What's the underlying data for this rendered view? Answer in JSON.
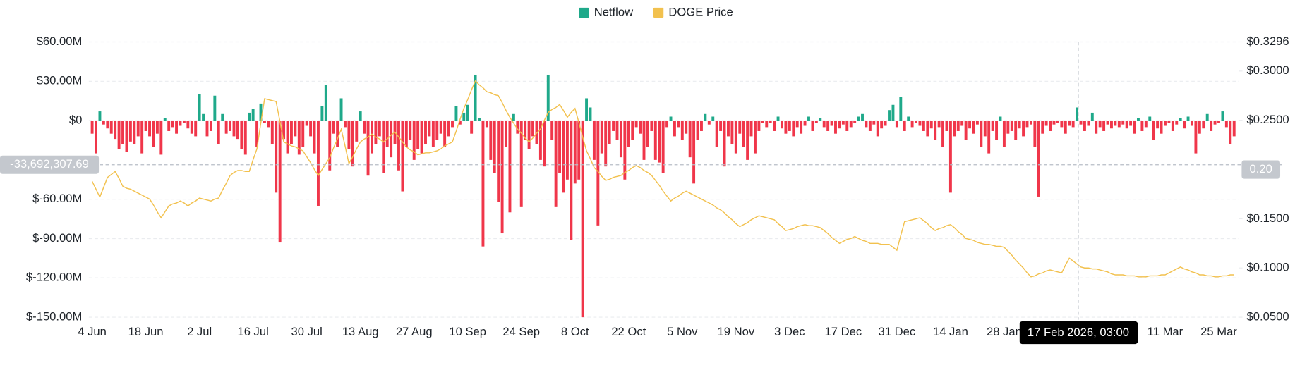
{
  "chart_data": {
    "type": "bar",
    "categories": [
      "4 Jun",
      null,
      null,
      null,
      null,
      null,
      null,
      null,
      null,
      null,
      null,
      null,
      null,
      null,
      "18 Jun",
      null,
      null,
      null,
      null,
      null,
      null,
      null,
      null,
      null,
      null,
      null,
      null,
      null,
      "2 Jul",
      null,
      null,
      null,
      null,
      null,
      null,
      null,
      null,
      null,
      null,
      null,
      null,
      null,
      "16 Jul",
      null,
      null,
      null,
      null,
      null,
      null,
      null,
      null,
      null,
      null,
      null,
      null,
      null,
      "30 Jul",
      null,
      null,
      null,
      null,
      null,
      null,
      null,
      null,
      null,
      null,
      null,
      null,
      null,
      "13 Aug",
      null,
      null,
      null,
      null,
      null,
      null,
      null,
      null,
      null,
      null,
      null,
      null,
      null,
      "27 Aug",
      null,
      null,
      null,
      null,
      null,
      null,
      null,
      null,
      null,
      null,
      null,
      null,
      null,
      "10 Sep",
      null,
      null,
      null,
      null,
      null,
      null,
      null,
      null,
      null,
      null,
      null,
      null,
      null,
      "24 Sep",
      null,
      null,
      null,
      null,
      null,
      null,
      null,
      null,
      null,
      null,
      null,
      null,
      null,
      "8 Oct",
      null,
      null,
      null,
      null,
      null,
      null,
      null,
      null,
      null,
      null,
      null,
      null,
      null,
      "22 Oct",
      null,
      null,
      null,
      null,
      null,
      null,
      null,
      null,
      null,
      null,
      null,
      null,
      null,
      "5 Nov",
      null,
      null,
      null,
      null,
      null,
      null,
      null,
      null,
      null,
      null,
      null,
      null,
      null,
      "19 Nov",
      null,
      null,
      null,
      null,
      null,
      null,
      null,
      null,
      null,
      null,
      null,
      null,
      null,
      "3 Dec",
      null,
      null,
      null,
      null,
      null,
      null,
      null,
      null,
      null,
      null,
      null,
      null,
      null,
      "17 Dec",
      null,
      null,
      null,
      null,
      null,
      null,
      null,
      null,
      null,
      null,
      null,
      null,
      null,
      "31 Dec",
      null,
      null,
      null,
      null,
      null,
      null,
      null,
      null,
      null,
      null,
      null,
      null,
      null,
      "14 Jan",
      null,
      null,
      null,
      null,
      null,
      null,
      null,
      null,
      null,
      null,
      null,
      null,
      null,
      "28 Jan",
      null,
      null,
      null,
      null,
      null,
      null,
      null,
      null,
      null,
      null,
      null,
      null,
      null,
      null,
      null,
      null,
      null,
      null,
      null,
      null,
      null,
      null,
      null,
      null,
      null,
      null,
      null,
      null,
      null,
      null,
      null,
      null,
      null,
      null,
      null,
      null,
      null,
      null,
      null,
      null,
      null,
      "11 Mar",
      null,
      null,
      null,
      null,
      null,
      null,
      null,
      null,
      null,
      null,
      null,
      null,
      null,
      "25 Mar",
      null,
      null,
      null,
      null
    ],
    "series": [
      {
        "name": "Netflow",
        "type": "bar",
        "color": "#1fa98a",
        "negative_color": "#f0364a",
        "values": [
          -10000000.0,
          -25000000.0,
          7000000.0,
          -3000000.0,
          -6000000.0,
          -10000000.0,
          -14000000.0,
          -22000000.0,
          -18000000.0,
          -24000000.0,
          -16000000.0,
          -18000000.0,
          -12000000.0,
          -25000000.0,
          -8000000.0,
          -12000000.0,
          -20000000.0,
          -10000000.0,
          -26000000.0,
          2000000.0,
          -8000000.0,
          -5000000.0,
          -10000000.0,
          -4000000.0,
          -2000000.0,
          -6000000.0,
          -10000000.0,
          -12000000.0,
          20000000.0,
          5000000.0,
          -12000000.0,
          -8000000.0,
          19000000.0,
          -18000000.0,
          5000000.0,
          -10000000.0,
          -8000000.0,
          -12000000.0,
          -14000000.0,
          -22000000.0,
          -26000000.0,
          6000000.0,
          9000000.0,
          -20000000.0,
          13000000.0,
          -2000000.0,
          -5000000.0,
          -18000000.0,
          -55000000.0,
          -93000000.0,
          -14000000.0,
          -25000000.0,
          -18000000.0,
          -12000000.0,
          -26000000.0,
          -20000000.0,
          -4000000.0,
          -12000000.0,
          -25000000.0,
          -65000000.0,
          11000000.0,
          27000000.0,
          -38000000.0,
          -10000000.0,
          -20000000.0,
          17000000.0,
          -5000000.0,
          -22000000.0,
          -35000000.0,
          -16000000.0,
          7000000.0,
          -10000000.0,
          -42000000.0,
          -25000000.0,
          -18000000.0,
          -12000000.0,
          -40000000.0,
          -20000000.0,
          -28000000.0,
          -18000000.0,
          -38000000.0,
          -54000000.0,
          -20000000.0,
          -15000000.0,
          -30000000.0,
          -22000000.0,
          -25000000.0,
          -18000000.0,
          -12000000.0,
          -20000000.0,
          -15000000.0,
          -10000000.0,
          -20000000.0,
          -12000000.0,
          -5000000.0,
          11000000.0,
          -3000000.0,
          6000000.0,
          12000000.0,
          -10000000.0,
          35000000.0,
          2000000.0,
          -96000000.0,
          -5000000.0,
          -30000000.0,
          -40000000.0,
          -62000000.0,
          -86000000.0,
          -20000000.0,
          -70000000.0,
          5000000.0,
          -10000000.0,
          -66000000.0,
          -15000000.0,
          -22000000.0,
          -12000000.0,
          -18000000.0,
          -30000000.0,
          -35000000.0,
          35000000.0,
          -15000000.0,
          -66000000.0,
          -40000000.0,
          -55000000.0,
          -45000000.0,
          -91000000.0,
          -48000000.0,
          -45000000.0,
          -150000000.0,
          17000000.0,
          10000000.0,
          -30000000.0,
          -80000000.0,
          -25000000.0,
          -35000000.0,
          -18000000.0,
          -8000000.0,
          -15000000.0,
          -28000000.0,
          -45000000.0,
          -20000000.0,
          -15000000.0,
          -5000000.0,
          -10000000.0,
          -30000000.0,
          -20000000.0,
          -8000000.0,
          -30000000.0,
          -32000000.0,
          -40000000.0,
          -5000000.0,
          3000000.0,
          -12000000.0,
          -5000000.0,
          -15000000.0,
          -10000000.0,
          -28000000.0,
          -48000000.0,
          -15000000.0,
          -8000000.0,
          5000000.0,
          -3000000.0,
          3000000.0,
          -20000000.0,
          -8000000.0,
          -35000000.0,
          -12000000.0,
          -18000000.0,
          -25000000.0,
          -10000000.0,
          -20000000.0,
          -30000000.0,
          -12000000.0,
          -25000000.0,
          -8000000.0,
          -2000000.0,
          -5000000.0,
          -2000000.0,
          -8000000.0,
          3000000.0,
          -6000000.0,
          -10000000.0,
          -8000000.0,
          -12000000.0,
          -5000000.0,
          -10000000.0,
          -4000000.0,
          3000000.0,
          -8000000.0,
          -2000000.0,
          2000000.0,
          -5000000.0,
          -8000000.0,
          -4000000.0,
          -10000000.0,
          -6000000.0,
          -3000000.0,
          -8000000.0,
          -5000000.0,
          -2000000.0,
          3000000.0,
          5000000.0,
          -5000000.0,
          -8000000.0,
          -3000000.0,
          -12000000.0,
          -6000000.0,
          -4000000.0,
          8000000.0,
          12000000.0,
          -5000000.0,
          18000000.0,
          -8000000.0,
          3000000.0,
          -5000000.0,
          -2000000.0,
          -4000000.0,
          -8000000.0,
          -12000000.0,
          -6000000.0,
          -15000000.0,
          -5000000.0,
          -20000000.0,
          -8000000.0,
          -55000000.0,
          -12000000.0,
          -8000000.0,
          -4000000.0,
          -15000000.0,
          -6000000.0,
          -10000000.0,
          -3000000.0,
          -20000000.0,
          -12000000.0,
          -25000000.0,
          -8000000.0,
          -15000000.0,
          3000000.0,
          -20000000.0,
          -10000000.0,
          -8000000.0,
          -15000000.0,
          -6000000.0,
          -12000000.0,
          -5000000.0,
          -3000000.0,
          -20000000.0,
          -58000000.0,
          -10000000.0,
          -4000000.0,
          -8000000.0,
          -3000000.0,
          -2000000.0,
          -5000000.0,
          -10000000.0,
          -4000000.0,
          -5000000.0,
          10000000.0,
          -3000000.0,
          -8000000.0,
          -4000000.0,
          6000000.0,
          -10000000.0,
          -5000000.0,
          -8000000.0,
          -3000000.0,
          -6000000.0,
          -4000000.0,
          -5000000.0,
          -3000000.0,
          -6000000.0,
          -4000000.0,
          -10000000.0,
          2000000.0,
          -8000000.0,
          -5000000.0,
          3000000.0,
          -15000000.0,
          -6000000.0,
          -10000000.0,
          -4000000.0,
          -2000000.0,
          -8000000.0,
          -3000000.0,
          2000000.0,
          -6000000.0,
          3000000.0,
          -4000000.0,
          -25000000.0,
          -10000000.0,
          -6000000.0,
          5000000.0,
          -8000000.0,
          -3000000.0,
          -2000000.0,
          7000000.0,
          -5000000.0,
          -18000000.0,
          -12000000.0
        ]
      },
      {
        "name": "DOGE Price",
        "type": "line",
        "axis": "y2",
        "color": "#f2c14e",
        "values": [
          0.188,
          0.18,
          0.172,
          0.182,
          0.192,
          0.195,
          0.198,
          0.191,
          0.183,
          0.181,
          0.18,
          0.178,
          0.176,
          0.174,
          0.172,
          0.17,
          0.164,
          0.157,
          0.151,
          0.157,
          0.163,
          0.165,
          0.166,
          0.168,
          0.166,
          0.163,
          0.166,
          0.168,
          0.171,
          0.17,
          0.169,
          0.168,
          0.17,
          0.171,
          0.179,
          0.186,
          0.194,
          0.197,
          0.199,
          0.199,
          0.198,
          0.198,
          0.21,
          0.221,
          0.247,
          0.272,
          0.271,
          0.27,
          0.269,
          0.249,
          0.228,
          0.226,
          0.224,
          0.223,
          0.221,
          0.219,
          0.213,
          0.207,
          0.2,
          0.194,
          0.2,
          0.206,
          0.212,
          0.222,
          0.231,
          0.241,
          0.224,
          0.206,
          0.213,
          0.221,
          0.228,
          0.231,
          0.233,
          0.236,
          0.233,
          0.231,
          0.228,
          0.231,
          0.235,
          0.238,
          0.233,
          0.228,
          0.223,
          0.22,
          0.218,
          0.215,
          0.216,
          0.217,
          0.217,
          0.218,
          0.219,
          0.221,
          0.224,
          0.226,
          0.228,
          0.239,
          0.251,
          0.262,
          0.271,
          0.281,
          0.29,
          0.286,
          0.283,
          0.279,
          0.278,
          0.276,
          0.275,
          0.268,
          0.26,
          0.253,
          0.247,
          0.241,
          0.237,
          0.232,
          0.228,
          0.232,
          0.237,
          0.241,
          0.25,
          0.258,
          0.261,
          0.263,
          0.266,
          0.26,
          0.253,
          0.258,
          0.262,
          0.248,
          0.233,
          0.219,
          0.211,
          0.202,
          0.198,
          0.193,
          0.189,
          0.19,
          0.192,
          0.193,
          0.194,
          0.197,
          0.199,
          0.202,
          0.204,
          0.202,
          0.199,
          0.197,
          0.194,
          0.189,
          0.184,
          0.178,
          0.173,
          0.168,
          0.171,
          0.173,
          0.176,
          0.178,
          0.176,
          0.174,
          0.172,
          0.17,
          0.168,
          0.166,
          0.164,
          0.161,
          0.159,
          0.156,
          0.152,
          0.149,
          0.145,
          0.142,
          0.144,
          0.146,
          0.149,
          0.151,
          0.153,
          0.152,
          0.151,
          0.15,
          0.149,
          0.145,
          0.142,
          0.138,
          0.139,
          0.14,
          0.142,
          0.143,
          0.144,
          0.143,
          0.143,
          0.142,
          0.141,
          0.138,
          0.135,
          0.131,
          0.128,
          0.125,
          0.127,
          0.129,
          0.13,
          0.132,
          0.13,
          0.128,
          0.127,
          0.125,
          0.125,
          0.125,
          0.124,
          0.124,
          0.124,
          0.121,
          0.118,
          0.133,
          0.147,
          0.148,
          0.149,
          0.15,
          0.151,
          0.148,
          0.145,
          0.141,
          0.138,
          0.14,
          0.141,
          0.143,
          0.144,
          0.141,
          0.137,
          0.134,
          0.13,
          0.129,
          0.128,
          0.126,
          0.125,
          0.124,
          0.124,
          0.123,
          0.122,
          0.122,
          0.121,
          0.117,
          0.113,
          0.108,
          0.104,
          0.1,
          0.095,
          0.091,
          0.092,
          0.094,
          0.095,
          0.097,
          0.098,
          0.097,
          0.096,
          0.095,
          0.103,
          0.11,
          0.107,
          0.104,
          0.101,
          0.1,
          0.1,
          0.099,
          0.099,
          0.098,
          0.097,
          0.096,
          0.094,
          0.093,
          0.093,
          0.093,
          0.092,
          0.092,
          0.092,
          0.091,
          0.091,
          0.091,
          0.092,
          0.092,
          0.092,
          0.093,
          0.093,
          0.095,
          0.097,
          0.099,
          0.101,
          0.099,
          0.098,
          0.096,
          0.095,
          0.093,
          0.093,
          0.092,
          0.092,
          0.091,
          0.091,
          0.092,
          0.092,
          0.093,
          0.093
        ]
      }
    ],
    "ylim": [
      -150000000,
      60000000
    ],
    "yticks": [
      {
        "value": 60000000,
        "label": "$60.00M"
      },
      {
        "value": 30000000,
        "label": "$30.00M"
      },
      {
        "value": 0,
        "label": "$0"
      },
      {
        "value": -60000000,
        "label": "$-60.00M"
      },
      {
        "value": -90000000,
        "label": "$-90.00M"
      },
      {
        "value": -120000000,
        "label": "$-120.00M"
      },
      {
        "value": -150000000,
        "label": "$-150.00M"
      }
    ],
    "y2lim": [
      0.05,
      0.3296
    ],
    "y2ticks": [
      {
        "value": 0.3296,
        "label": "$0.3296"
      },
      {
        "value": 0.3,
        "label": "$0.3000"
      },
      {
        "value": 0.25,
        "label": "$0.2500"
      },
      {
        "value": 0.15,
        "label": "$0.1500"
      },
      {
        "value": 0.1,
        "label": "$0.1000"
      },
      {
        "value": 0.05,
        "label": "$0.0500"
      }
    ],
    "grid": true,
    "legend": "top",
    "crosshair": {
      "y": {
        "value": -33692307.69,
        "label": "-33,692,307.69"
      },
      "y2": {
        "value": 0.2,
        "label": "0.20"
      },
      "x_label": "17 Feb 2026, 03:00"
    }
  }
}
